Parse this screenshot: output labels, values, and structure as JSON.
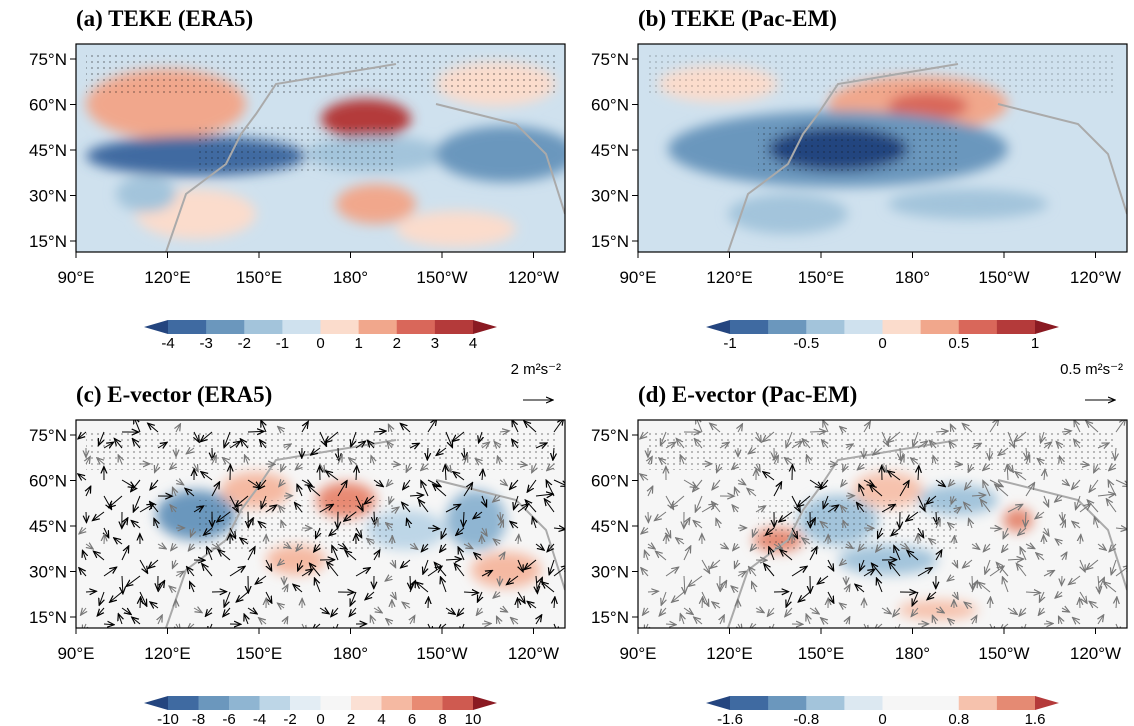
{
  "panels": [
    {
      "title": "(a) TEKE (ERA5)",
      "xticks": [
        "90°E",
        "120°E",
        "150°E",
        "180°",
        "150°W",
        "120°W"
      ],
      "yticks": [
        "75°N",
        "60°N",
        "45°N",
        "30°N",
        "15°N"
      ],
      "colorbar": {
        "labels": [
          "-4",
          "-3",
          "-2",
          "-1",
          "0",
          "1",
          "2",
          "3",
          "4"
        ],
        "colors": [
          "#24457f",
          "#3f6aa1",
          "#6b97bd",
          "#a3c4db",
          "#cfe1ee",
          "#fbdccc",
          "#f1a78c",
          "#d9675a",
          "#b43a3a",
          "#8a1a22"
        ]
      }
    },
    {
      "title": "(b) TEKE (Pac-EM)",
      "xticks": [
        "90°E",
        "120°E",
        "150°E",
        "180°",
        "150°W",
        "120°W"
      ],
      "yticks": [
        "75°N",
        "60°N",
        "45°N",
        "30°N",
        "15°N"
      ],
      "colorbar": {
        "labels": [
          "-1",
          "-0.5",
          "0",
          "0.5",
          "1"
        ],
        "colors": [
          "#24457f",
          "#3f6aa1",
          "#6b97bd",
          "#a3c4db",
          "#cfe1ee",
          "#fbdccc",
          "#f1a78c",
          "#d9675a",
          "#b43a3a",
          "#8a1a22"
        ]
      }
    },
    {
      "title": "(c) E-vector (ERA5)",
      "ref_vector": "2 m²s⁻²",
      "xticks": [
        "90°E",
        "120°E",
        "150°E",
        "180°",
        "150°W",
        "120°W"
      ],
      "yticks": [
        "75°N",
        "60°N",
        "45°N",
        "30°N",
        "15°N"
      ],
      "colorbar": {
        "labels": [
          "-10",
          "-8",
          "-6",
          "-4",
          "-2",
          "0",
          "2",
          "4",
          "6",
          "8",
          "10"
        ],
        "colors": [
          "#24457f",
          "#3f6aa1",
          "#6b97bd",
          "#8fb5d2",
          "#bdd6e7",
          "#e3edf4",
          "#f6f6f6",
          "#fbe0d4",
          "#f5b9a2",
          "#e88a73",
          "#cf5a50",
          "#8a1a22"
        ]
      }
    },
    {
      "title": "(d) E-vector (Pac-EM)",
      "ref_vector": "0.5 m²s⁻²",
      "xticks": [
        "90°E",
        "120°E",
        "150°E",
        "180°",
        "150°W",
        "120°W"
      ],
      "yticks": [
        "75°N",
        "60°N",
        "45°N",
        "30°N",
        "15°N"
      ],
      "colorbar": {
        "labels": [
          "-1.6",
          "-0.8",
          "0",
          "0.8",
          "1.6"
        ],
        "colors": [
          "#24457f",
          "#3f6aa1",
          "#6b97bd",
          "#a3c4db",
          "#dce8f1",
          "#f6f6f6",
          "#f6f6f6",
          "#f6c2ad",
          "#e58a73",
          "#b43a3a"
        ]
      }
    }
  ]
}
